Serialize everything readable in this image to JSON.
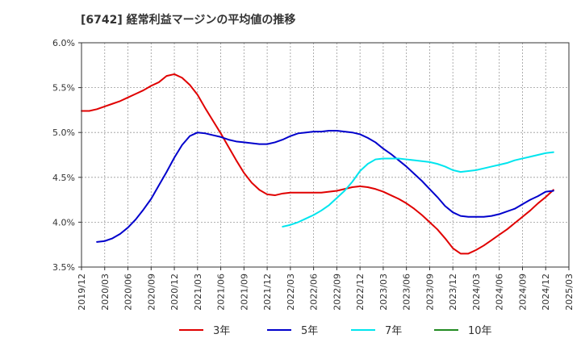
{
  "chart_data": {
    "type": "line",
    "title": "[6742]  経常利益マージンの平均値の推移",
    "xlabel": "",
    "ylabel": "",
    "x_ticks": [
      "2019/12",
      "2020/03",
      "2020/06",
      "2020/09",
      "2020/12",
      "2021/03",
      "2021/06",
      "2021/09",
      "2021/12",
      "2022/03",
      "2022/06",
      "2022/09",
      "2022/12",
      "2023/03",
      "2023/06",
      "2023/09",
      "2023/12",
      "2024/03",
      "2024/06",
      "2024/09",
      "2024/12",
      "2025/03"
    ],
    "y_ticks": [
      "3.5%",
      "4.0%",
      "4.5%",
      "5.0%",
      "5.5%",
      "6.0%"
    ],
    "ylim": [
      3.5,
      6.0
    ],
    "grid": true,
    "legend_position": "bottom",
    "series": [
      {
        "name": "3年",
        "color": "#e00000",
        "points": [
          [
            "2019/12",
            5.24
          ],
          [
            "2020/01",
            5.24
          ],
          [
            "2020/02",
            5.26
          ],
          [
            "2020/03",
            5.29
          ],
          [
            "2020/04",
            5.32
          ],
          [
            "2020/05",
            5.35
          ],
          [
            "2020/06",
            5.39
          ],
          [
            "2020/07",
            5.43
          ],
          [
            "2020/08",
            5.47
          ],
          [
            "2020/09",
            5.52
          ],
          [
            "2020/10",
            5.56
          ],
          [
            "2020/11",
            5.63
          ],
          [
            "2020/12",
            5.65
          ],
          [
            "2021/01",
            5.61
          ],
          [
            "2021/02",
            5.53
          ],
          [
            "2021/03",
            5.42
          ],
          [
            "2021/04",
            5.27
          ],
          [
            "2021/05",
            5.13
          ],
          [
            "2021/06",
            4.99
          ],
          [
            "2021/07",
            4.84
          ],
          [
            "2021/08",
            4.69
          ],
          [
            "2021/09",
            4.55
          ],
          [
            "2021/10",
            4.44
          ],
          [
            "2021/11",
            4.36
          ],
          [
            "2021/12",
            4.31
          ],
          [
            "2022/01",
            4.3
          ],
          [
            "2022/02",
            4.32
          ],
          [
            "2022/03",
            4.33
          ],
          [
            "2022/04",
            4.33
          ],
          [
            "2022/05",
            4.33
          ],
          [
            "2022/06",
            4.33
          ],
          [
            "2022/07",
            4.33
          ],
          [
            "2022/08",
            4.34
          ],
          [
            "2022/09",
            4.35
          ],
          [
            "2022/10",
            4.37
          ],
          [
            "2022/11",
            4.39
          ],
          [
            "2022/12",
            4.4
          ],
          [
            "2023/01",
            4.39
          ],
          [
            "2023/02",
            4.37
          ],
          [
            "2023/03",
            4.34
          ],
          [
            "2023/04",
            4.3
          ],
          [
            "2023/05",
            4.26
          ],
          [
            "2023/06",
            4.21
          ],
          [
            "2023/07",
            4.15
          ],
          [
            "2023/08",
            4.08
          ],
          [
            "2023/09",
            4.0
          ],
          [
            "2023/10",
            3.92
          ],
          [
            "2023/11",
            3.82
          ],
          [
            "2023/12",
            3.71
          ],
          [
            "2024/01",
            3.65
          ],
          [
            "2024/02",
            3.65
          ],
          [
            "2024/03",
            3.69
          ],
          [
            "2024/04",
            3.74
          ],
          [
            "2024/05",
            3.8
          ],
          [
            "2024/06",
            3.86
          ],
          [
            "2024/07",
            3.92
          ],
          [
            "2024/08",
            3.99
          ],
          [
            "2024/09",
            4.06
          ],
          [
            "2024/10",
            4.13
          ],
          [
            "2024/11",
            4.21
          ],
          [
            "2024/12",
            4.28
          ],
          [
            "2025/01",
            4.36
          ]
        ]
      },
      {
        "name": "5年",
        "color": "#0000cc",
        "points": [
          [
            "2020/02",
            3.78
          ],
          [
            "2020/03",
            3.79
          ],
          [
            "2020/04",
            3.82
          ],
          [
            "2020/05",
            3.87
          ],
          [
            "2020/06",
            3.94
          ],
          [
            "2020/07",
            4.03
          ],
          [
            "2020/08",
            4.14
          ],
          [
            "2020/09",
            4.26
          ],
          [
            "2020/10",
            4.41
          ],
          [
            "2020/11",
            4.56
          ],
          [
            "2020/12",
            4.72
          ],
          [
            "2021/01",
            4.86
          ],
          [
            "2021/02",
            4.96
          ],
          [
            "2021/03",
            5.0
          ],
          [
            "2021/04",
            4.99
          ],
          [
            "2021/05",
            4.97
          ],
          [
            "2021/06",
            4.95
          ],
          [
            "2021/07",
            4.92
          ],
          [
            "2021/08",
            4.9
          ],
          [
            "2021/09",
            4.89
          ],
          [
            "2021/10",
            4.88
          ],
          [
            "2021/11",
            4.87
          ],
          [
            "2021/12",
            4.87
          ],
          [
            "2022/01",
            4.89
          ],
          [
            "2022/02",
            4.92
          ],
          [
            "2022/03",
            4.96
          ],
          [
            "2022/04",
            4.99
          ],
          [
            "2022/05",
            5.0
          ],
          [
            "2022/06",
            5.01
          ],
          [
            "2022/07",
            5.01
          ],
          [
            "2022/08",
            5.02
          ],
          [
            "2022/09",
            5.02
          ],
          [
            "2022/10",
            5.01
          ],
          [
            "2022/11",
            5.0
          ],
          [
            "2022/12",
            4.98
          ],
          [
            "2023/01",
            4.94
          ],
          [
            "2023/02",
            4.89
          ],
          [
            "2023/03",
            4.82
          ],
          [
            "2023/04",
            4.76
          ],
          [
            "2023/05",
            4.69
          ],
          [
            "2023/06",
            4.62
          ],
          [
            "2023/07",
            4.54
          ],
          [
            "2023/08",
            4.46
          ],
          [
            "2023/09",
            4.37
          ],
          [
            "2023/10",
            4.28
          ],
          [
            "2023/11",
            4.18
          ],
          [
            "2023/12",
            4.11
          ],
          [
            "2024/01",
            4.07
          ],
          [
            "2024/02",
            4.06
          ],
          [
            "2024/03",
            4.06
          ],
          [
            "2024/04",
            4.06
          ],
          [
            "2024/05",
            4.07
          ],
          [
            "2024/06",
            4.09
          ],
          [
            "2024/07",
            4.12
          ],
          [
            "2024/08",
            4.15
          ],
          [
            "2024/09",
            4.2
          ],
          [
            "2024/10",
            4.25
          ],
          [
            "2024/11",
            4.29
          ],
          [
            "2024/12",
            4.34
          ],
          [
            "2025/01",
            4.35
          ]
        ]
      },
      {
        "name": "7年",
        "color": "#00e5ee",
        "points": [
          [
            "2022/02",
            3.95
          ],
          [
            "2022/03",
            3.97
          ],
          [
            "2022/04",
            4.0
          ],
          [
            "2022/05",
            4.04
          ],
          [
            "2022/06",
            4.08
          ],
          [
            "2022/07",
            4.13
          ],
          [
            "2022/08",
            4.19
          ],
          [
            "2022/09",
            4.27
          ],
          [
            "2022/10",
            4.35
          ],
          [
            "2022/11",
            4.45
          ],
          [
            "2022/12",
            4.57
          ],
          [
            "2023/01",
            4.65
          ],
          [
            "2023/02",
            4.7
          ],
          [
            "2023/03",
            4.71
          ],
          [
            "2023/04",
            4.71
          ],
          [
            "2023/05",
            4.71
          ],
          [
            "2023/06",
            4.7
          ],
          [
            "2023/07",
            4.69
          ],
          [
            "2023/08",
            4.68
          ],
          [
            "2023/09",
            4.67
          ],
          [
            "2023/10",
            4.65
          ],
          [
            "2023/11",
            4.62
          ],
          [
            "2023/12",
            4.58
          ],
          [
            "2024/01",
            4.56
          ],
          [
            "2024/02",
            4.57
          ],
          [
            "2024/03",
            4.58
          ],
          [
            "2024/04",
            4.6
          ],
          [
            "2024/05",
            4.62
          ],
          [
            "2024/06",
            4.64
          ],
          [
            "2024/07",
            4.66
          ],
          [
            "2024/08",
            4.69
          ],
          [
            "2024/09",
            4.71
          ],
          [
            "2024/10",
            4.73
          ],
          [
            "2024/11",
            4.75
          ],
          [
            "2024/12",
            4.77
          ],
          [
            "2025/01",
            4.78
          ]
        ]
      },
      {
        "name": "10年",
        "color": "#228b22",
        "points": []
      }
    ]
  }
}
